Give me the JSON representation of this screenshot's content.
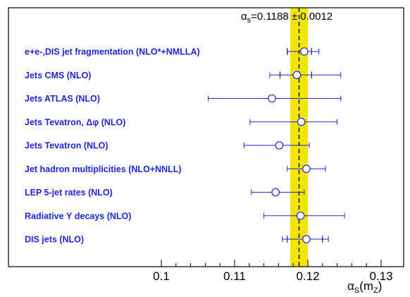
{
  "chart_data": {
    "type": "scatter",
    "orientation": "horizontal-error-bars",
    "world_average": {
      "text": "α_s=0.1188 ± 0.0012",
      "text_main": "α",
      "text_sub": "s",
      "text_rest": "=0.1188 ± 0.0012",
      "value": 0.1188,
      "uncertainty": 0.0012,
      "band_color": "#f2e600"
    },
    "xlim": [
      0.1,
      0.13
    ],
    "xticks": [
      {
        "value": 0.1,
        "label": "0.1"
      },
      {
        "value": 0.11,
        "label": "0.11"
      },
      {
        "value": 0.12,
        "label": "0.12"
      },
      {
        "value": 0.13,
        "label": "0.13"
      }
    ],
    "xlabel": {
      "main": "α",
      "sub1": "S",
      "paren_open": "(m",
      "sub2": "Z",
      "paren_close": ")"
    },
    "marker_color": "#2323d8",
    "label_color": "#2323d8",
    "points": [
      {
        "label": "e+e-,DIS jet fragmentation (NLO*+NMLLA)",
        "value": 0.1195,
        "inner": [
          0.1172,
          0.1205
        ],
        "outer": [
          0.1172,
          0.1215
        ]
      },
      {
        "label": "Jets CMS (NLO)",
        "value": 0.1185,
        "inner": [
          0.1162,
          0.1205
        ],
        "outer": [
          0.1148,
          0.1245
        ]
      },
      {
        "label": "Jets ATLAS (NLO)",
        "value": 0.1151,
        "inner": null,
        "outer": [
          0.1064,
          0.1245
        ]
      },
      {
        "label": "Jets Tevatron, Δφ (NLO)",
        "value": 0.1191,
        "inner": null,
        "outer": [
          0.1121,
          0.124
        ]
      },
      {
        "label": "Jets Tevatron (NLO)",
        "value": 0.1161,
        "inner": null,
        "outer": [
          0.1113,
          0.1202
        ]
      },
      {
        "label": "Jet hadron multiplicities (NLO+NNLL)",
        "value": 0.1198,
        "inner": null,
        "outer": [
          0.1172,
          0.1224
        ]
      },
      {
        "label": "LEP 5-jet rates (NLO)",
        "value": 0.1156,
        "inner": null,
        "outer": [
          0.1123,
          0.1195
        ]
      },
      {
        "label": "Radiative Υ decays (NLO)",
        "value": 0.119,
        "inner": null,
        "outer": [
          0.114,
          0.125
        ]
      },
      {
        "label": "DIS jets (NLO)",
        "value": 0.1198,
        "inner": [
          0.1172,
          0.122
        ],
        "outer": [
          0.1165,
          0.1228
        ]
      }
    ]
  }
}
